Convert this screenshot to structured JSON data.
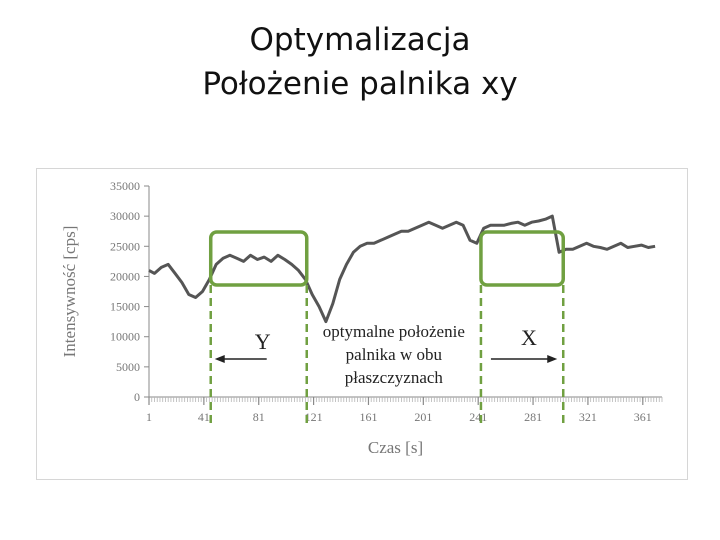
{
  "slide": {
    "title_line1": "Optymalizacja",
    "title_line2": "Położenie palnika xy"
  },
  "colors": {
    "series": "#555555",
    "highlight": "#70a041",
    "axis": "#8a8a8a",
    "text": "#777777"
  },
  "chart_data": {
    "type": "line",
    "xlabel": "Czas [s]",
    "ylabel": "Intensywność [cps]",
    "xlim": [
      1,
      375
    ],
    "ylim": [
      0,
      35000
    ],
    "x_ticks": [
      1,
      41,
      81,
      121,
      161,
      201,
      241,
      281,
      321,
      361
    ],
    "y_ticks": [
      0,
      5000,
      10000,
      15000,
      20000,
      25000,
      30000,
      35000
    ],
    "grid": false,
    "legend": "none",
    "series": [
      {
        "x": [
          1,
          5,
          10,
          15,
          20,
          25,
          30,
          35,
          40,
          45,
          50,
          55,
          60,
          65,
          70,
          75,
          80,
          85,
          90,
          95,
          100,
          105,
          110,
          115,
          120,
          125,
          130,
          135,
          140,
          145,
          150,
          155,
          160,
          165,
          170,
          175,
          180,
          185,
          190,
          195,
          200,
          205,
          210,
          215,
          220,
          225,
          230,
          235,
          240,
          245,
          250,
          255,
          260,
          265,
          270,
          275,
          280,
          285,
          290,
          295,
          300,
          305,
          310,
          315,
          320,
          325,
          330,
          335,
          340,
          345,
          350,
          355,
          360,
          365,
          370
        ],
        "y": [
          21000,
          20500,
          21500,
          22000,
          20500,
          19000,
          17000,
          16500,
          17500,
          19500,
          22000,
          23000,
          23500,
          23000,
          22500,
          23500,
          22800,
          23200,
          22500,
          23500,
          22800,
          22000,
          21000,
          19500,
          17000,
          15000,
          12500,
          15500,
          19500,
          22000,
          24000,
          25000,
          25500,
          25500,
          26000,
          26500,
          27000,
          27500,
          27500,
          28000,
          28500,
          29000,
          28500,
          28000,
          28500,
          29000,
          28500,
          26000,
          25500,
          28000,
          28500,
          28500,
          28500,
          28800,
          29000,
          28500,
          29000,
          29200,
          29500,
          30000,
          24000,
          24500,
          24500,
          25000,
          25500,
          25000,
          24800,
          24500,
          25000,
          25500,
          24800,
          25000,
          25200,
          24800,
          25000
        ]
      }
    ],
    "annotations": {
      "box_y_range": [
        46,
        116
      ],
      "box_x_range": [
        243,
        303
      ],
      "y_label": "Y",
      "x_label": "X",
      "center_text": [
        "optymalne położenie",
        "palnika w obu",
        "płaszczyznach"
      ]
    }
  }
}
